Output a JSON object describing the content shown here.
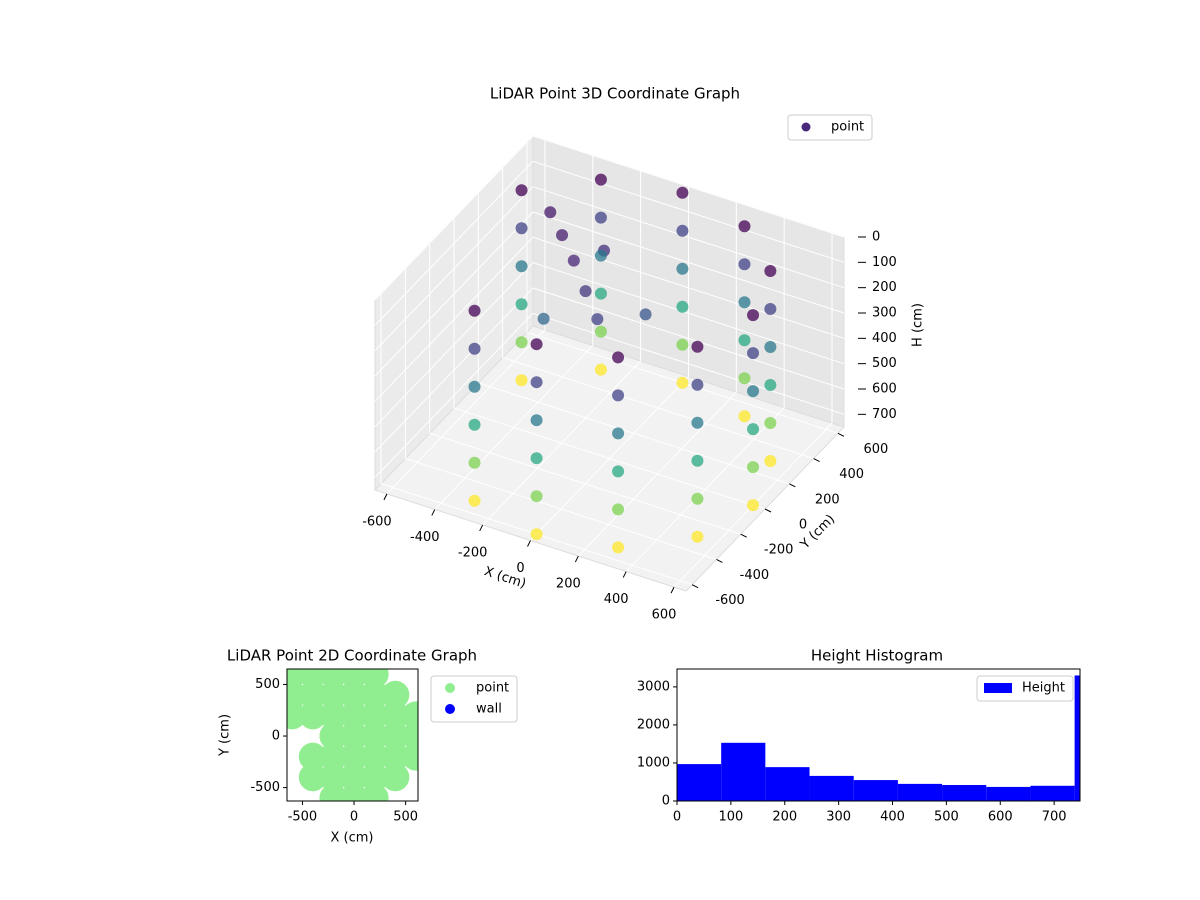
{
  "chart_data": [
    {
      "type": "scatter3d",
      "title": "LiDAR Point 3D Coordinate Graph",
      "xlabel": "X (cm)",
      "ylabel": "Y (cm)",
      "zlabel": "H (cm)",
      "colormap": "viridis",
      "z_inverted": true,
      "legend": "upper right",
      "xlim": [
        -650,
        650
      ],
      "ylim": [
        -650,
        650
      ],
      "zlim": [
        0,
        750
      ],
      "xticks": [
        -600,
        -400,
        -200,
        0,
        200,
        400,
        600
      ],
      "yticks": [
        -600,
        -400,
        -200,
        0,
        200,
        400,
        600
      ],
      "zticks": [
        0,
        100,
        200,
        300,
        400,
        500,
        600,
        700
      ],
      "series": [
        {
          "name": "point",
          "color": "#482878",
          "x": [
            -200,
            -100,
            -300,
            0,
            -400,
            100,
            -250,
            -150,
            -520,
            -520,
            -520,
            -520,
            -520,
            -520,
            -300,
            -300,
            -300,
            -300,
            -300,
            -300,
            0,
            0,
            0,
            0,
            0,
            0,
            300,
            300,
            300,
            300,
            300,
            300,
            520,
            520,
            520,
            520,
            520,
            520,
            600,
            600,
            600,
            600,
            600,
            600,
            520,
            520,
            520,
            520,
            520,
            520,
            300,
            300,
            300,
            300,
            300,
            300,
            0,
            0,
            0,
            0,
            0,
            0,
            -300,
            -300,
            -300,
            -300,
            -300,
            -300
          ],
          "y": [
            100,
            0,
            200,
            -100,
            300,
            100,
            -50,
            250,
            300,
            300,
            300,
            300,
            300,
            300,
            520,
            520,
            520,
            520,
            520,
            520,
            600,
            600,
            600,
            600,
            600,
            600,
            520,
            520,
            520,
            520,
            520,
            520,
            300,
            300,
            300,
            300,
            300,
            300,
            0,
            0,
            0,
            0,
            0,
            0,
            -300,
            -300,
            -300,
            -300,
            -300,
            -300,
            -520,
            -520,
            -520,
            -520,
            -520,
            -520,
            -600,
            -600,
            -600,
            -600,
            -600,
            -600,
            -520,
            -520,
            -520,
            -520,
            -520,
            -520
          ],
          "z": [
            80,
            120,
            60,
            150,
            50,
            200,
            250,
            100,
            0,
            150,
            300,
            450,
            600,
            750,
            0,
            150,
            300,
            450,
            600,
            750,
            0,
            150,
            300,
            450,
            600,
            750,
            0,
            150,
            300,
            450,
            600,
            750,
            0,
            150,
            300,
            450,
            600,
            750,
            0,
            150,
            300,
            450,
            600,
            750,
            0,
            150,
            300,
            450,
            600,
            750,
            0,
            150,
            300,
            450,
            600,
            750,
            0,
            150,
            300,
            450,
            600,
            750,
            0,
            150,
            300,
            450,
            600,
            750
          ]
        }
      ]
    },
    {
      "type": "scatter",
      "title": "LiDAR Point 2D Coordinate Graph",
      "xlabel": "X (cm)",
      "ylabel": "Y (cm)",
      "legend": "outside right",
      "xlim": [
        -650,
        620
      ],
      "ylim": [
        -630,
        650
      ],
      "xticks": [
        -500,
        0,
        500
      ],
      "yticks": [
        -500,
        0,
        500
      ],
      "series": [
        {
          "name": "point",
          "color": "#90ee90",
          "x": [
            -600,
            -400,
            -200,
            0,
            200,
            -600,
            -400,
            -200,
            0,
            200,
            400,
            -600,
            -400,
            -200,
            0,
            200,
            400,
            600,
            -200,
            0,
            200,
            400,
            600,
            -400,
            -200,
            0,
            200,
            400,
            600,
            -400,
            -200,
            0,
            200,
            400,
            -200,
            0,
            200
          ],
          "y": [
            600,
            600,
            600,
            600,
            600,
            400,
            400,
            400,
            400,
            400,
            400,
            200,
            200,
            200,
            200,
            200,
            200,
            200,
            0,
            0,
            0,
            0,
            0,
            -200,
            -200,
            -200,
            -200,
            -200,
            -200,
            -400,
            -400,
            -400,
            -400,
            -400,
            -600,
            -600,
            -600
          ]
        },
        {
          "name": "wall",
          "color": "#0000ff",
          "x": [],
          "y": []
        }
      ]
    },
    {
      "type": "histogram",
      "title": "Height Histogram",
      "legend": "upper right",
      "series_name": "Height",
      "color": "#0000ff",
      "bins": [
        0,
        82,
        164,
        246,
        328,
        410,
        492,
        574,
        656,
        738,
        748
      ],
      "values": [
        970,
        1530,
        890,
        660,
        550,
        450,
        420,
        370,
        400,
        3300
      ],
      "xlim": [
        0,
        748
      ],
      "ylim": [
        0,
        3470
      ],
      "xticks": [
        0,
        100,
        200,
        300,
        400,
        500,
        600,
        700
      ],
      "yticks": [
        0,
        1000,
        2000,
        3000
      ]
    }
  ]
}
